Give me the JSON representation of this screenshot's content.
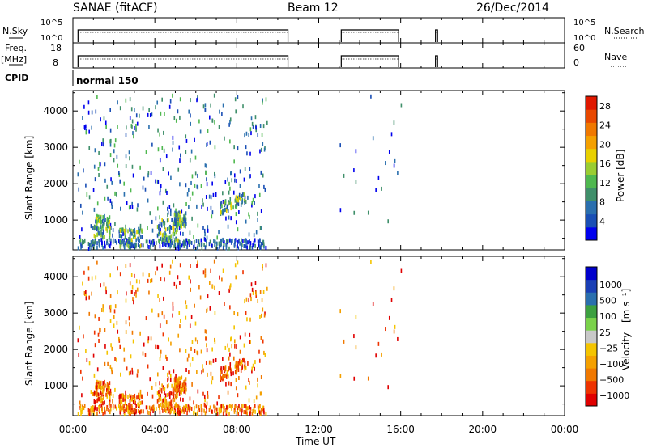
{
  "header": {
    "radar": "SANAE (fitACF)",
    "beam": "Beam 12",
    "date": "26/Dec/2014"
  },
  "colors": {
    "power_bar": [
      "#0000ee",
      "#1a4fb5",
      "#2a6fae",
      "#3f8f6a",
      "#4fb84f",
      "#9acd32",
      "#e8d000",
      "#f4a000",
      "#f07800",
      "#e84800",
      "#e01800"
    ],
    "velocity_bar": [
      "#e00000",
      "#ee3300",
      "#f07800",
      "#f4a000",
      "#f4c400",
      "#c8c8c8",
      "#7ad24a",
      "#3ca040",
      "#2a6fae",
      "#1a3fb5",
      "#0000cc"
    ]
  },
  "chart_data": [
    {
      "type": "line",
      "name": "status-panels",
      "x_labels": [
        "00:00",
        "04:00",
        "08:00",
        "12:00",
        "16:00",
        "20:00",
        "00:00"
      ],
      "xlim_hours": [
        0,
        24
      ],
      "nsky_panel": {
        "left_label": "N.Sky",
        "right_label": "N.Search",
        "left_ticks": [
          "10^5",
          "10^0"
        ],
        "right_ticks": [
          "10^5",
          "10^0"
        ],
        "segments_hours": [
          [
            0.25,
            10.5
          ],
          [
            13.1,
            15.9
          ],
          [
            17.7,
            17.8
          ]
        ]
      },
      "freq_panel": {
        "left_label": "Freq.",
        "left_unit": "[MHz]",
        "right_label": "Nave",
        "left_ticks": [
          "18",
          "8"
        ],
        "right_ticks": [
          "60",
          "0"
        ],
        "segments_hours": [
          [
            0.25,
            10.5
          ],
          [
            13.1,
            15.9
          ],
          [
            17.7,
            17.8
          ]
        ]
      },
      "cpid_panel": {
        "label": "CPID",
        "program": "normal 150"
      }
    },
    {
      "type": "scatter",
      "name": "power",
      "ylabel": "Slant Range [km]",
      "yticks": [
        "1000",
        "2000",
        "3000",
        "4000"
      ],
      "ylim": [
        180,
        4560
      ],
      "colorbar_label": "Power [dB]",
      "colorbar_ticks": [
        "4",
        "8",
        "12",
        "16",
        "20",
        "24",
        "28"
      ]
    },
    {
      "type": "scatter",
      "name": "velocity",
      "ylabel": "Slant Range [km]",
      "yticks": [
        "1000",
        "2000",
        "3000",
        "4000"
      ],
      "ylim": [
        180,
        4560
      ],
      "colorbar_label": "Velocity",
      "colorbar_unit": "[m s⁻¹]",
      "colorbar_ticks": [
        "1000",
        "500",
        "100",
        "25",
        "−25",
        "−100",
        "−500",
        "−1000"
      ],
      "xlabel": "Time UT"
    }
  ]
}
